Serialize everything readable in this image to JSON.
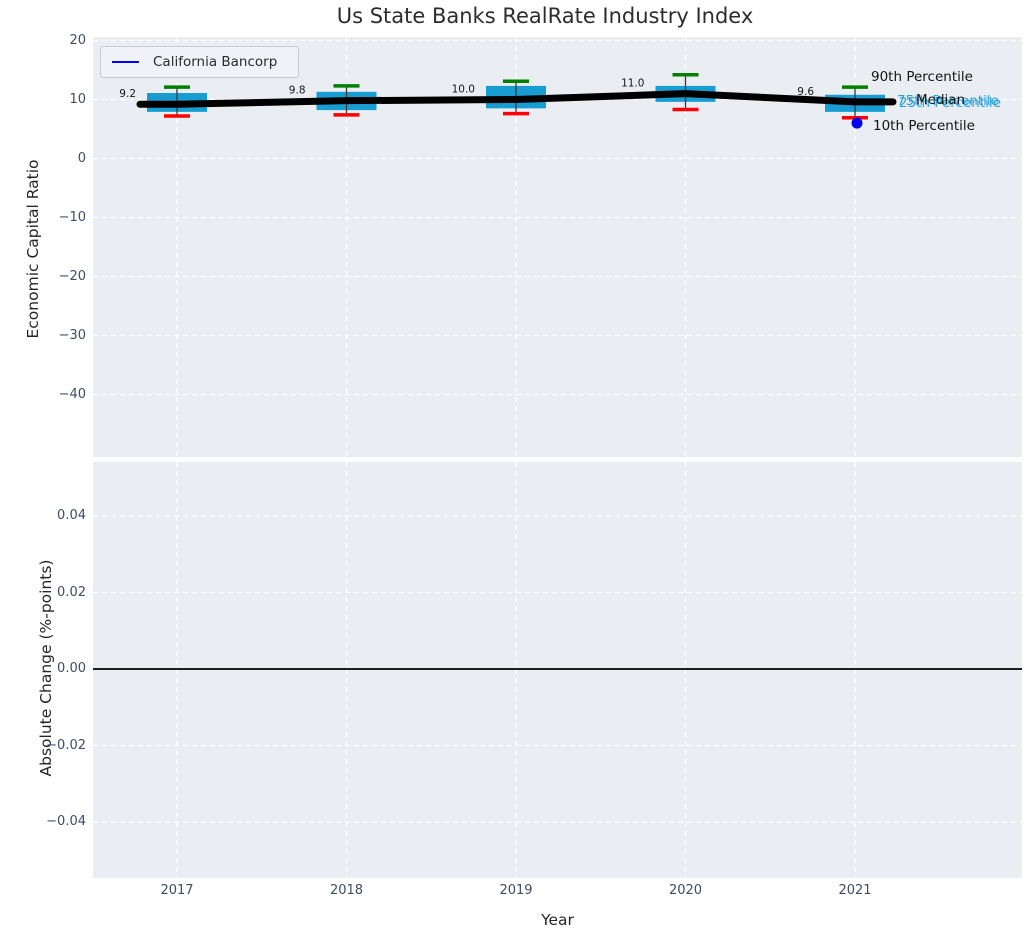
{
  "title": "Us State Banks RealRate Industry Index",
  "xlabel": "Year",
  "legend": {
    "label": "California Bancorp"
  },
  "years": [
    "2017",
    "2018",
    "2019",
    "2020",
    "2021"
  ],
  "top_chart": {
    "ylabel": "Economic Capital Ratio",
    "yticks": [
      "20",
      "10",
      "0",
      "−10",
      "−20",
      "−30",
      "−40"
    ],
    "ytick_values": [
      20,
      10,
      0,
      -10,
      -20,
      -30,
      -40
    ],
    "median_annotations": [
      "9.2",
      "9.8",
      "10.0",
      "11.0",
      "9.6"
    ]
  },
  "bottom_chart": {
    "ylabel": "Absolute Change (%-points)",
    "yticks": [
      "0.04",
      "0.02",
      "0.00",
      "−0.02",
      "−0.04"
    ],
    "ytick_values": [
      0.04,
      0.02,
      0,
      -0.02,
      -0.04
    ]
  },
  "percentile_labels": {
    "p90": "90th Percentile",
    "p75": "75th Percentile",
    "median": "Median",
    "p25": "25th Percentile",
    "p10": "10th Percentile"
  },
  "colors": {
    "box_fill": "#189dd3",
    "p90_cap": "#008000",
    "p10_cap": "#ff0000",
    "median_line": "#000000",
    "company_marker": "#0000f0",
    "cyan_label": "#2aa4d8",
    "plot_bg": "#eaedf1",
    "grid": "#ffffff",
    "tick_text": "#3d4e63",
    "whisker": "#3a3a3a"
  },
  "chart_data": {
    "type": "boxplot",
    "title": "Us State Banks RealRate Industry Index",
    "xlabel": "Year",
    "categories": [
      2017,
      2018,
      2019,
      2020,
      2021
    ],
    "primary": {
      "ylabel": "Economic Capital Ratio",
      "ylim": [
        -51,
        20.5
      ],
      "grid": true,
      "legend_position": "upper left",
      "median": [
        9.2,
        9.8,
        10.0,
        11.0,
        9.6
      ],
      "p90": [
        12.1,
        12.3,
        13.1,
        14.2,
        12.1
      ],
      "p75": [
        11.1,
        11.3,
        12.3,
        12.3,
        10.8
      ],
      "p25": [
        7.9,
        8.2,
        8.5,
        9.6,
        7.9
      ],
      "p10": [
        7.2,
        7.4,
        7.6,
        8.3,
        6.9
      ],
      "company_series": {
        "name": "California Bancorp",
        "points": [
          {
            "x": 2021,
            "y": 6.0
          }
        ]
      }
    },
    "secondary": {
      "type": "line",
      "ylabel": "Absolute Change (%-points)",
      "ylim": [
        -0.055,
        0.055
      ],
      "zero_line": 0.0,
      "values": []
    }
  }
}
